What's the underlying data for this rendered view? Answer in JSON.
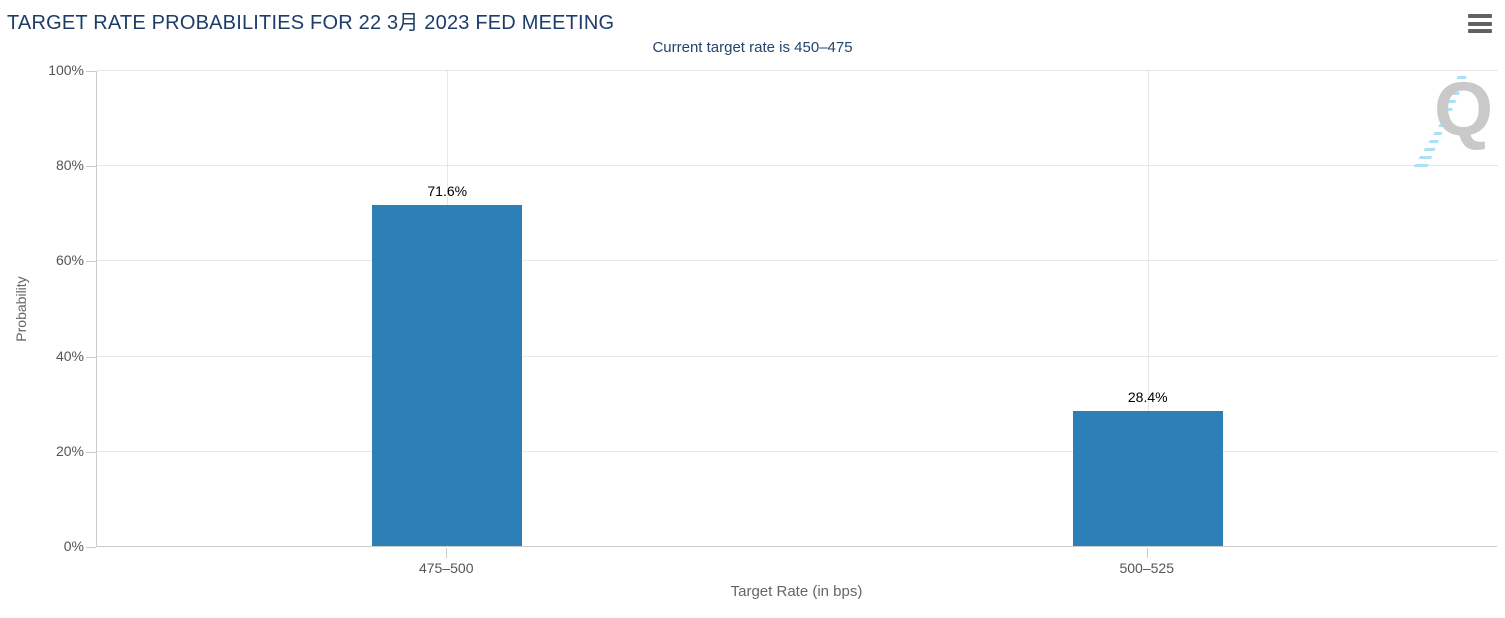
{
  "header": {
    "menu_icon": "hamburger-icon",
    "menu_tooltip": "Chart context menu"
  },
  "chart_data": {
    "type": "bar",
    "title": "TARGET RATE PROBABILITIES FOR 22 3月 2023 FED MEETING",
    "subtitle": "Current target rate is 450–475",
    "categories": [
      "475–500",
      "500–525"
    ],
    "values": [
      71.6,
      28.4
    ],
    "data_labels": [
      "71.6%",
      "28.4%"
    ],
    "xlabel": "Target Rate (in bps)",
    "ylabel": "Probability",
    "ylim": [
      0,
      100
    ],
    "yticks": [
      0,
      20,
      40,
      60,
      80,
      100
    ],
    "ytick_labels": [
      "0%",
      "20%",
      "40%",
      "60%",
      "80%",
      "100%"
    ],
    "grid": true,
    "legend": "none",
    "watermark": "Q"
  },
  "colors": {
    "title": "#1d3c68",
    "subtitle": "#21456e",
    "bar": "#2d7fb8",
    "gridline": "#e6e6e6",
    "axis_line": "#cccccc",
    "tick_label": "#555555",
    "axis_title": "#666666",
    "data_label": "#000000",
    "menu_icon": "#616161",
    "watermark_q": "#c9c9c9",
    "watermark_stripes": "#aee0f5"
  }
}
